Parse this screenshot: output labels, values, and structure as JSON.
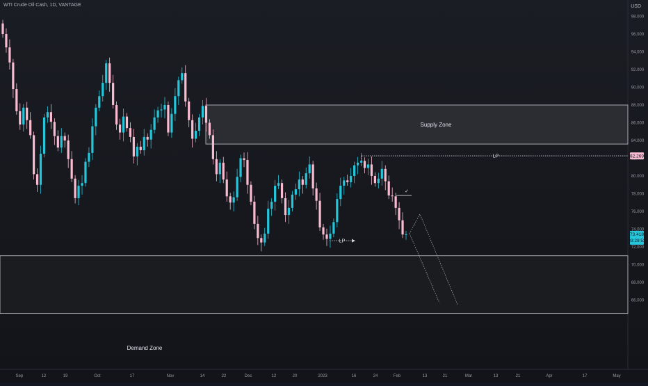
{
  "header": {
    "symbol_title": "WTI Crude Oil Cash, 1D, VANTAGE",
    "currency": "USD"
  },
  "price_axis": {
    "ticks": [
      "98.000",
      "96.000",
      "94.000",
      "92.000",
      "90.000",
      "88.000",
      "86.000",
      "84.000",
      "82.000",
      "80.000",
      "78.000",
      "76.000",
      "74.000",
      "72.000",
      "70.000",
      "68.000",
      "66.000"
    ],
    "last_price_label": "73.418",
    "countdown_label": "03:29:53",
    "level_label": "82.269"
  },
  "time_axis": {
    "ticks": [
      "Sep",
      "12",
      "19",
      "Oct",
      "17",
      "Nov",
      "14",
      "22",
      "Dec",
      "12",
      "20",
      "2023",
      "16",
      "24",
      "Feb",
      "13",
      "21",
      "Mar",
      "13",
      "21",
      "Apr",
      "17",
      "May"
    ]
  },
  "zones": {
    "supply_label": "Supply Zone",
    "demand_label": "Demand Zone"
  },
  "annotations": {
    "lp_top": "LP",
    "lp_bottom": "LP",
    "check": "✓"
  },
  "colors": {
    "background": "#131722",
    "bullish": "#26c6da",
    "bearish": "#f8bbd0",
    "zone_border": "#d1d4dc",
    "last_price_bg": "#26c6da",
    "level_bg": "#f8bbd0"
  },
  "chart_data": {
    "type": "candlestick",
    "title": "WTI Crude Oil Cash, 1D, VANTAGE",
    "ylim": [
      65,
      98.5
    ],
    "y_unit": "USD",
    "supply_zone": [
      83.6,
      88.0
    ],
    "demand_zone": [
      64.5,
      71.0
    ],
    "liquidity_level_top": 82.269,
    "liquidity_level_bottom": 72.7,
    "last_price": 73.418,
    "projection": [
      73.5,
      75.7,
      65.7,
      65.5
    ],
    "close_series": [
      96.0,
      94.5,
      92.8,
      89.8,
      87.3,
      85.8,
      87.7,
      86.3,
      84.6,
      80.2,
      79.0,
      82.5,
      86.6,
      87.2,
      86.1,
      84.5,
      83.2,
      84.5,
      84.0,
      81.9,
      79.7,
      77.5,
      78.9,
      79.2,
      81.6,
      82.6,
      85.6,
      87.7,
      89.0,
      90.5,
      92.7,
      90.5,
      88.0,
      85.8,
      84.9,
      86.7,
      85.4,
      84.4,
      82.2,
      83.3,
      82.9,
      84.4,
      84.1,
      85.2,
      86.6,
      87.4,
      87.5,
      88.0,
      84.9,
      87.0,
      89.0,
      90.8,
      91.6,
      88.4,
      86.3,
      84.2,
      85.1,
      86.6,
      87.9,
      86.0,
      84.6,
      81.9,
      80.2,
      81.5,
      79.6,
      77.7,
      77.0,
      77.6,
      79.9,
      82.0,
      81.8,
      79.0,
      77.1,
      74.6,
      73.0,
      72.5,
      73.5,
      76.3,
      77.1,
      78.9,
      79.2,
      77.5,
      75.6,
      76.4,
      77.9,
      78.5,
      79.6,
      79.0,
      80.3,
      81.3,
      78.6,
      77.2,
      74.2,
      73.4,
      72.9,
      73.5,
      74.8,
      77.4,
      78.9,
      79.5,
      79.3,
      80.0,
      81.2,
      81.5,
      81.7,
      80.9,
      81.3,
      80.0,
      79.2,
      79.7,
      80.8,
      79.4,
      77.8,
      77.7,
      76.4,
      75.0,
      73.4,
      73.418
    ]
  }
}
